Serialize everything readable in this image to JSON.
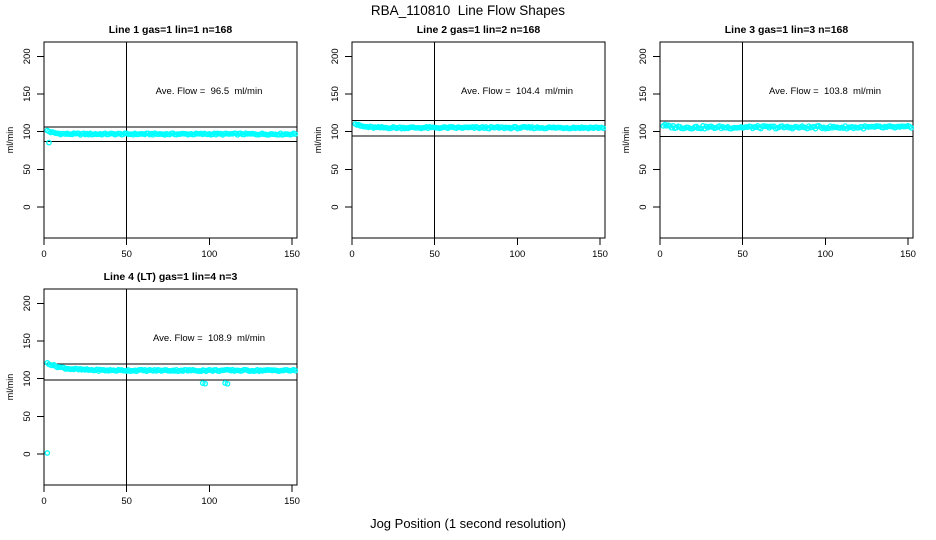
{
  "figure": {
    "title": "RBA_110810  Line Flow Shapes",
    "xlabel": "Jog Position (1 second resolution)"
  },
  "style": {
    "background": "#FFFFFF",
    "point_color": "#00FFFF",
    "line_color": "#000000",
    "text_color": "#000000"
  },
  "chart_data": [
    {
      "type": "scatter",
      "title": "Line 1 gas=1 lin=1 n=168",
      "line_label": "Line 1",
      "gas": 1,
      "lin": 1,
      "n": 168,
      "ylabel": "ml/min",
      "annotation": "Ave. Flow =  96.5  ml/min",
      "ave_flow_ml_min": 96.5,
      "x_ticks": [
        0,
        50,
        100,
        150
      ],
      "y_ticks": [
        0,
        50,
        100,
        150,
        200
      ],
      "xlim": [
        0,
        153
      ],
      "ylim": [
        -41,
        219
      ],
      "grid": false,
      "vline_x": 50,
      "hlines": [
        106.2,
        86.9
      ],
      "band": {
        "x_start": 2,
        "x_end": 152,
        "start_y": 101.5,
        "settle_y": 96.9,
        "tau": 3.5,
        "noise": 1.1
      },
      "outliers": [
        [
          3,
          85.5
        ]
      ],
      "annotation_pos": [
        100,
        150
      ]
    },
    {
      "type": "scatter",
      "title": "Line 2 gas=1 lin=2 n=168",
      "line_label": "Line 2",
      "gas": 1,
      "lin": 2,
      "n": 168,
      "ylabel": "ml/min",
      "annotation": "Ave. Flow =  104.4  ml/min",
      "ave_flow_ml_min": 104.4,
      "x_ticks": [
        0,
        50,
        100,
        150
      ],
      "y_ticks": [
        0,
        50,
        100,
        150,
        200
      ],
      "xlim": [
        0,
        153
      ],
      "ylim": [
        -41,
        219
      ],
      "grid": false,
      "vline_x": 50,
      "hlines": [
        114.8,
        94.0
      ],
      "band": {
        "x_start": 2,
        "x_end": 152,
        "start_y": 110.5,
        "settle_y": 105.3,
        "tau": 4,
        "noise": 1.2
      },
      "outliers": [],
      "annotation_pos": [
        100,
        150
      ]
    },
    {
      "type": "scatter",
      "title": "Line 3 gas=1 lin=3 n=168",
      "line_label": "Line 3",
      "gas": 1,
      "lin": 3,
      "n": 168,
      "ylabel": "ml/min",
      "annotation": "Ave. Flow =  103.8  ml/min",
      "ave_flow_ml_min": 103.8,
      "x_ticks": [
        0,
        50,
        100,
        150
      ],
      "y_ticks": [
        0,
        50,
        100,
        150,
        200
      ],
      "xlim": [
        0,
        153
      ],
      "ylim": [
        -41,
        219
      ],
      "grid": false,
      "vline_x": 50,
      "hlines": [
        114.2,
        93.4
      ],
      "band": {
        "x_start": 2,
        "x_end": 152,
        "start_y": 108.5,
        "settle_y": 105.8,
        "tau": 4,
        "noise": 1.9
      },
      "outliers": [],
      "annotation_pos": [
        100,
        150
      ]
    },
    {
      "type": "scatter",
      "title": "Line 4 (LT) gas=1 lin=4 n=3",
      "line_label": "Line 4 (LT)",
      "gas": 1,
      "lin": 4,
      "n": 3,
      "ylabel": "ml/min",
      "annotation": "Ave. Flow =  108.9  ml/min",
      "ave_flow_ml_min": 108.9,
      "x_ticks": [
        0,
        50,
        100,
        150
      ],
      "y_ticks": [
        0,
        50,
        100,
        150,
        200
      ],
      "xlim": [
        0,
        153
      ],
      "ylim": [
        -41,
        219
      ],
      "grid": false,
      "vline_x": 50,
      "hlines": [
        119.8,
        98.0
      ],
      "band": {
        "x_start": 2,
        "x_end": 152,
        "start_y": 121,
        "settle_y": 111,
        "tau": 9,
        "noise": 1.1
      },
      "outliers": [
        [
          2,
          1.5
        ],
        [
          96,
          94.2
        ],
        [
          97.5,
          93.4
        ],
        [
          109.5,
          94.3
        ],
        [
          111,
          93.3
        ]
      ],
      "annotation_pos": [
        100,
        150
      ]
    }
  ]
}
